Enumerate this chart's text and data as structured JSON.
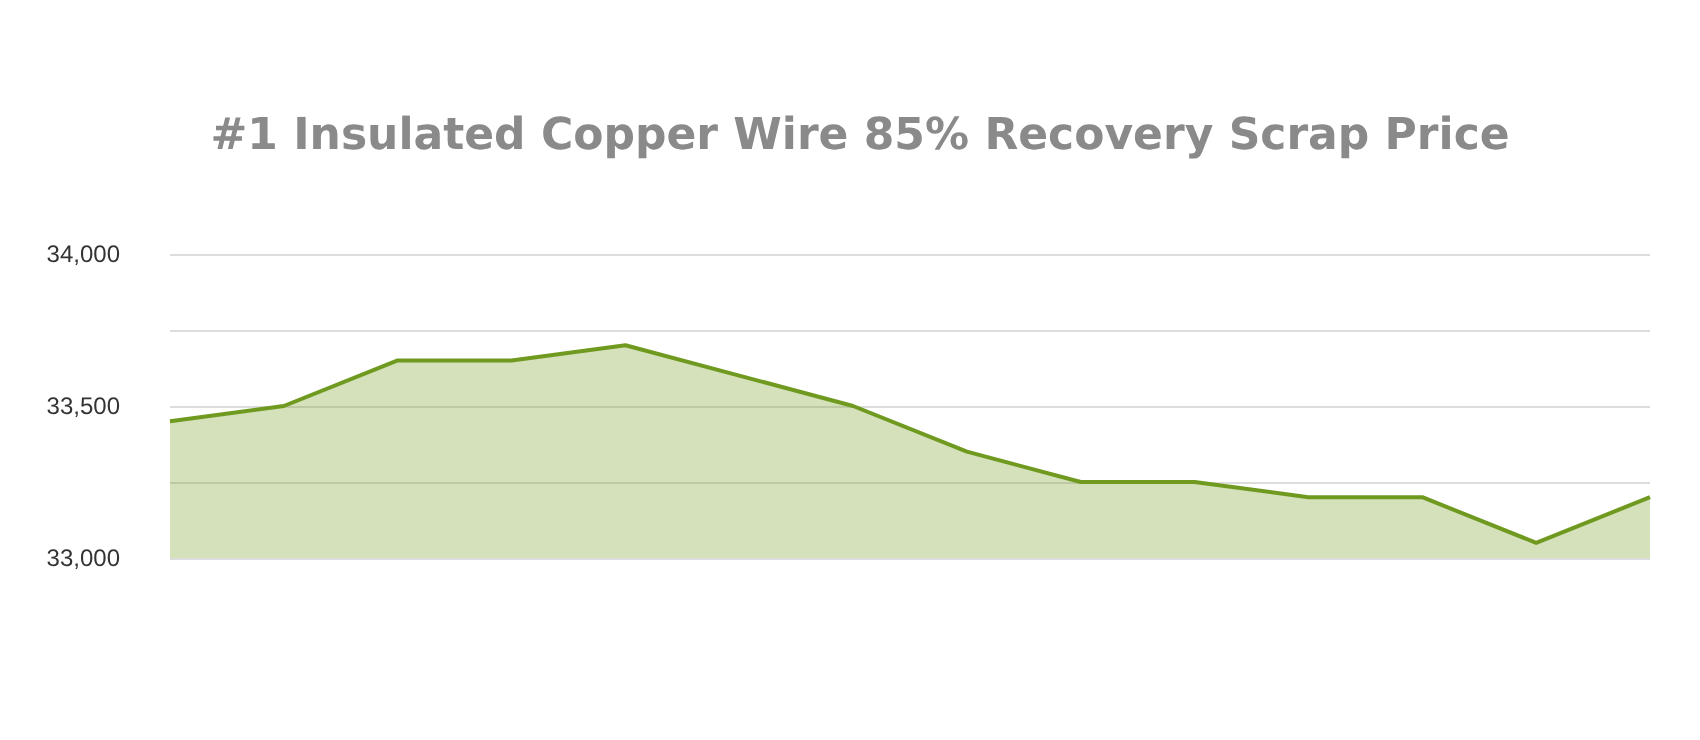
{
  "chart_data": {
    "type": "area",
    "title": "#1 Insulated Copper Wire 85% Recovery Scrap Price",
    "categories": [
      null,
      null,
      null,
      null,
      null,
      null,
      null,
      null,
      null,
      null,
      null,
      null,
      null,
      null
    ],
    "series": [
      {
        "color": "#6f9a1f",
        "values": [
          33450,
          33500,
          33650,
          33650,
          33700,
          33600,
          33500,
          33350,
          33250,
          33250,
          33200,
          33200,
          33050,
          33200
        ]
      }
    ],
    "ylim": [
      33000,
      34000
    ],
    "yticks": [
      {
        "value": 33000,
        "label": "33,000"
      },
      {
        "value": 33250,
        "label": null
      },
      {
        "value": 33500,
        "label": "33,500"
      },
      {
        "value": 33750,
        "label": null
      },
      {
        "value": 34000,
        "label": "34,000"
      }
    ],
    "grid": "y",
    "marker": "none",
    "tick_labels": "y"
  }
}
